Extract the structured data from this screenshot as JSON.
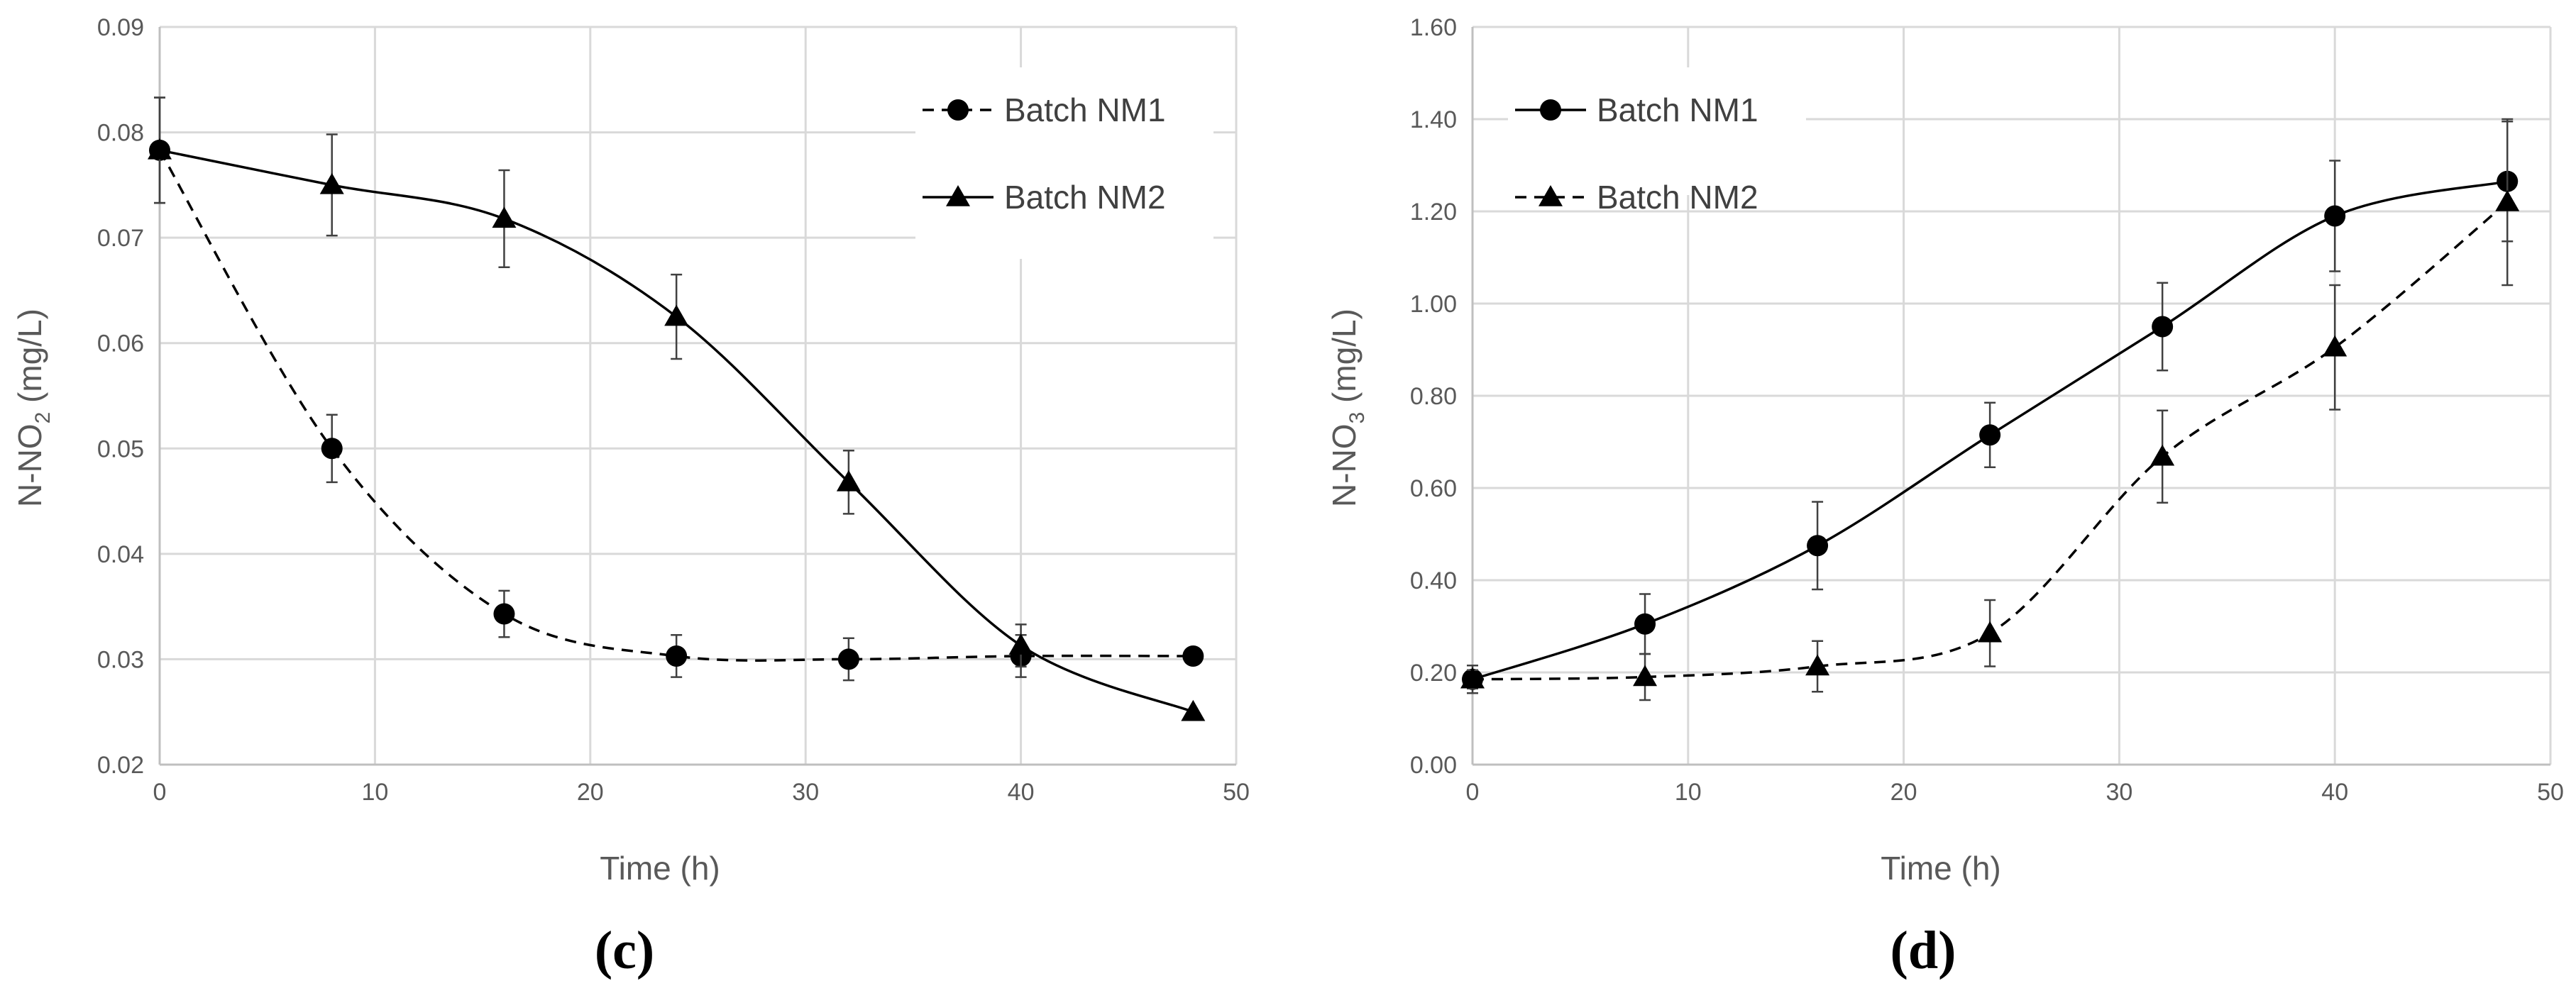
{
  "chart_data": [
    {
      "type": "line",
      "panel_label": "(c)",
      "xlabel": "Time (h)",
      "ylabel": {
        "main": "N-NO",
        "sub": "2",
        "unit": " (mg/L)"
      },
      "xlim": [
        0,
        50
      ],
      "ylim": [
        0.02,
        0.09
      ],
      "xticks": [
        0,
        10,
        20,
        30,
        40,
        50
      ],
      "xtick_labels": [
        "0",
        "10",
        "20",
        "30",
        "40",
        "50"
      ],
      "yticks": [
        0.02,
        0.03,
        0.04,
        0.05,
        0.06,
        0.07,
        0.08,
        0.09
      ],
      "ytick_labels": [
        "0.02",
        "0.03",
        "0.04",
        "0.05",
        "0.06",
        "0.07",
        "0.08",
        "0.09"
      ],
      "grid": true,
      "legend_position": "top-right",
      "series": [
        {
          "name": "Batch NM1",
          "marker": "circle",
          "line_style": "dashed",
          "x": [
            0,
            8,
            16,
            24,
            32,
            40,
            48
          ],
          "y": [
            0.0783,
            0.05,
            0.0343,
            0.0303,
            0.03,
            0.0303,
            0.0303
          ],
          "error": [
            0.005,
            0.0032,
            0.0022,
            0.002,
            0.002,
            0.002,
            0
          ]
        },
        {
          "name": "Batch NM2",
          "marker": "triangle",
          "line_style": "solid",
          "x": [
            0,
            8,
            16,
            24,
            32,
            40,
            48
          ],
          "y": [
            0.0783,
            0.075,
            0.0718,
            0.0625,
            0.0468,
            0.0313,
            0.025
          ],
          "error": [
            0.005,
            0.0048,
            0.0046,
            0.004,
            0.003,
            0.002,
            0
          ]
        }
      ]
    },
    {
      "type": "line",
      "panel_label": "(d)",
      "xlabel": "Time (h)",
      "ylabel": {
        "main": "N-NO",
        "sub": "3",
        "unit": " (mg/L)"
      },
      "xlim": [
        0,
        50
      ],
      "ylim": [
        0,
        1.6
      ],
      "xticks": [
        0,
        10,
        20,
        30,
        40,
        50
      ],
      "xtick_labels": [
        "0",
        "10",
        "20",
        "30",
        "40",
        "50"
      ],
      "yticks": [
        0,
        0.2,
        0.4,
        0.6,
        0.8,
        1.0,
        1.2,
        1.4,
        1.6
      ],
      "ytick_labels": [
        "0.00",
        "0.20",
        "0.40",
        "0.60",
        "0.80",
        "1.00",
        "1.20",
        "1.40",
        "1.60"
      ],
      "grid": true,
      "legend_position": "top-left",
      "series": [
        {
          "name": "Batch NM1",
          "marker": "circle",
          "line_style": "solid",
          "x": [
            0,
            8,
            16,
            24,
            32,
            40,
            48
          ],
          "y": [
            0.185,
            0.305,
            0.475,
            0.715,
            0.95,
            1.19,
            1.265
          ],
          "error": [
            0.03,
            0.065,
            0.095,
            0.07,
            0.095,
            0.12,
            0.13
          ]
        },
        {
          "name": "Batch NM2",
          "marker": "triangle",
          "line_style": "dashed",
          "x": [
            0,
            8,
            16,
            24,
            32,
            40,
            48
          ],
          "y": [
            0.185,
            0.19,
            0.213,
            0.285,
            0.668,
            0.905,
            1.22
          ],
          "error": [
            0.02,
            0.05,
            0.055,
            0.072,
            0.1,
            0.135,
            0.18
          ]
        }
      ]
    }
  ]
}
